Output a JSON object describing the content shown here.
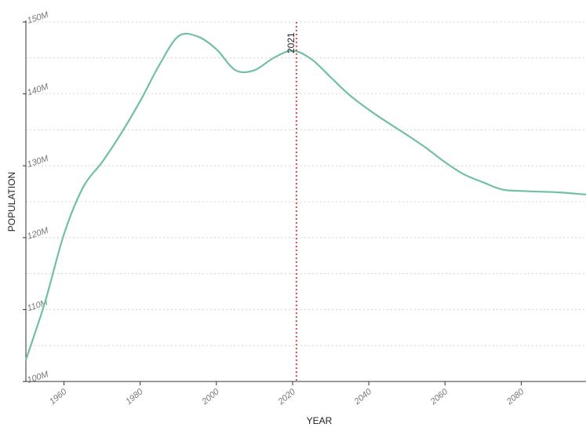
{
  "chart_data": {
    "type": "line",
    "xlabel": "YEAR",
    "ylabel": "POPULATION",
    "xlim": [
      1950,
      2097
    ],
    "ylim": [
      100000000,
      150000000
    ],
    "x_ticks": [
      {
        "value": 1960,
        "label": "1960"
      },
      {
        "value": 1980,
        "label": "1980"
      },
      {
        "value": 2000,
        "label": "2000"
      },
      {
        "value": 2020,
        "label": "2020"
      },
      {
        "value": 2040,
        "label": "2040"
      },
      {
        "value": 2060,
        "label": "2060"
      },
      {
        "value": 2080,
        "label": "2080"
      }
    ],
    "y_ticks": [
      {
        "value": 100000000,
        "label": "100M"
      },
      {
        "value": 110000000,
        "label": "110M"
      },
      {
        "value": 120000000,
        "label": "120M"
      },
      {
        "value": 130000000,
        "label": "130M"
      },
      {
        "value": 140000000,
        "label": "140M"
      },
      {
        "value": 150000000,
        "label": "150M"
      }
    ],
    "grid": true,
    "line_color": "#72bfa5",
    "marker": {
      "year": 2021,
      "label": "2021",
      "color": "#e8474a"
    },
    "series": [
      {
        "x": [
          1950,
          1955,
          1960,
          1965,
          1970,
          1975,
          1980,
          1985,
          1990,
          1995,
          2000,
          2005,
          2010,
          2015,
          2020,
          2025,
          2030,
          2035,
          2040,
          2045,
          2050,
          2055,
          2060,
          2065,
          2070,
          2075,
          2080,
          2085,
          2090,
          2097
        ],
        "y": [
          103000000,
          111000000,
          120500000,
          127000000,
          130500000,
          134500000,
          139000000,
          144000000,
          148000000,
          148000000,
          146200000,
          143300000,
          143300000,
          145000000,
          146000000,
          144800000,
          142300000,
          139800000,
          137800000,
          136000000,
          134300000,
          132500000,
          130500000,
          128800000,
          127700000,
          126700000,
          126500000,
          126400000,
          126300000,
          126000000
        ]
      }
    ]
  }
}
